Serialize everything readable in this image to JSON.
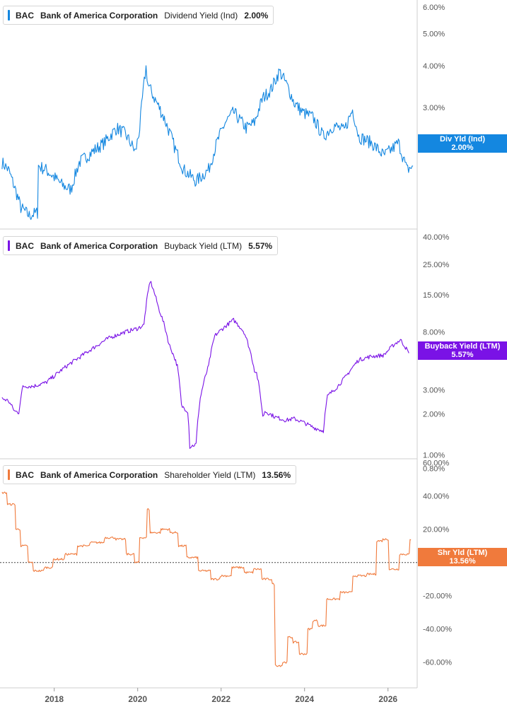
{
  "chart_data": [
    {
      "type": "line",
      "ticker": "BAC",
      "company": "Bank of America Corporation",
      "metric": "Dividend Yield (Ind)",
      "current_value": "2.00%",
      "tag_label": "Div Yld (Ind)",
      "tag_value": "2.00%",
      "color": "#1487e0",
      "scale": "log",
      "ylim_percent": [
        1.3,
        6.3
      ],
      "y_ticks": [
        "6.00%",
        "5.00%",
        "4.00%",
        "3.00%"
      ],
      "y_tick_values": [
        6.0,
        5.0,
        4.0,
        3.0
      ],
      "x": [
        2016.75,
        2016.9,
        2017.0,
        2017.2,
        2017.4,
        2017.6,
        2017.62,
        2017.8,
        2018.0,
        2018.2,
        2018.4,
        2018.6,
        2018.9,
        2019.2,
        2019.5,
        2019.7,
        2019.95,
        2020.05,
        2020.2,
        2020.25,
        2020.4,
        2020.6,
        2020.9,
        2021.1,
        2021.4,
        2021.7,
        2021.9,
        2022.1,
        2022.3,
        2022.6,
        2022.8,
        2023.0,
        2023.2,
        2023.4,
        2023.6,
        2023.75,
        2023.95,
        2024.2,
        2024.45,
        2024.7,
        2024.95,
        2025.15,
        2025.3,
        2025.6,
        2025.9,
        2026.1,
        2026.25,
        2026.45,
        2026.6
      ],
      "y": [
        2.05,
        1.95,
        1.8,
        1.5,
        1.42,
        1.45,
        2.0,
        1.95,
        1.85,
        1.75,
        1.7,
        2.05,
        2.2,
        2.35,
        2.6,
        2.5,
        2.2,
        2.6,
        3.95,
        3.5,
        3.2,
        2.85,
        2.25,
        1.95,
        1.8,
        1.95,
        2.35,
        2.7,
        2.9,
        2.6,
        2.7,
        3.2,
        3.4,
        3.85,
        3.45,
        3.1,
        2.9,
        2.8,
        2.45,
        2.65,
        2.55,
        2.95,
        2.45,
        2.35,
        2.15,
        2.25,
        2.35,
        1.95,
        2.0
      ]
    },
    {
      "type": "line",
      "ticker": "BAC",
      "company": "Bank of America Corporation",
      "metric": "Buyback Yield (LTM)",
      "current_value": "5.57%",
      "tag_label": "Buyback Yield (LTM)",
      "tag_value": "5.57%",
      "color": "#7a12e6",
      "scale": "log",
      "ylim_percent": [
        0.95,
        45
      ],
      "y_ticks": [
        "40.00%",
        "25.00%",
        "15.00%",
        "8.00%",
        "3.00%",
        "2.00%",
        "1.00%",
        "0.80%"
      ],
      "y_tick_values": [
        40,
        25,
        15,
        8,
        3,
        2,
        1,
        0.8
      ],
      "x": [
        2016.75,
        2016.9,
        2017.05,
        2017.15,
        2017.25,
        2017.5,
        2017.8,
        2018.0,
        2018.3,
        2018.6,
        2018.9,
        2019.3,
        2019.7,
        2020.0,
        2020.15,
        2020.3,
        2020.5,
        2020.75,
        2020.95,
        2021.05,
        2021.2,
        2021.25,
        2021.4,
        2021.5,
        2021.7,
        2021.85,
        2022.1,
        2022.3,
        2022.55,
        2022.8,
        2022.85,
        2023.0,
        2023.05,
        2023.3,
        2023.55,
        2023.75,
        2023.95,
        2024.2,
        2024.45,
        2024.55,
        2024.8,
        2025.0,
        2025.3,
        2025.6,
        2025.9,
        2026.15,
        2026.3,
        2026.5
      ],
      "y": [
        2.6,
        2.5,
        2.1,
        2.05,
        3.2,
        3.2,
        3.4,
        3.8,
        4.5,
        5.2,
        6.0,
        7.2,
        8.0,
        8.5,
        9.0,
        19.0,
        12.0,
        6.5,
        4.5,
        2.3,
        2.1,
        1.15,
        1.2,
        2.6,
        4.5,
        7.5,
        8.8,
        9.8,
        8.0,
        4.2,
        4.0,
        1.9,
        2.1,
        1.9,
        1.8,
        1.85,
        1.75,
        1.6,
        1.5,
        2.7,
        3.2,
        3.8,
        5.0,
        5.3,
        5.4,
        6.5,
        7.0,
        5.6
      ]
    },
    {
      "type": "line",
      "ticker": "BAC",
      "company": "Bank of America Corporation",
      "metric": "Shareholder Yield (LTM)",
      "current_value": "13.56%",
      "tag_label": "Shr Yld (LTM)",
      "tag_value": "13.56%",
      "color": "#f07a3c",
      "scale": "linear",
      "ylim_percent": [
        -75,
        62
      ],
      "reference_line": 0,
      "y_ticks": [
        "60.00%",
        "40.00%",
        "20.00%",
        "0.00%",
        "-20.00%",
        "-40.00%",
        "-60.00%"
      ],
      "y_tick_values": [
        60,
        40,
        20,
        0,
        -20,
        -40,
        -60
      ],
      "x": [
        2016.75,
        2016.9,
        2017.1,
        2017.2,
        2017.4,
        2017.5,
        2017.8,
        2018.0,
        2018.3,
        2018.6,
        2018.9,
        2019.25,
        2019.5,
        2019.75,
        2019.95,
        2020.05,
        2020.25,
        2020.3,
        2020.6,
        2020.8,
        2021.0,
        2021.2,
        2021.5,
        2021.8,
        2022.0,
        2022.3,
        2022.6,
        2022.8,
        2023.0,
        2023.25,
        2023.3,
        2023.5,
        2023.6,
        2023.75,
        2023.9,
        2024.1,
        2024.2,
        2024.35,
        2024.55,
        2024.9,
        2025.2,
        2025.55,
        2025.75,
        2025.9,
        2026.05,
        2026.3,
        2026.55
      ],
      "y": [
        42,
        35,
        20,
        10,
        0,
        -5,
        -3,
        2,
        5,
        10,
        12,
        15,
        14,
        5,
        0,
        15,
        32,
        18,
        20,
        18,
        10,
        3,
        -5,
        -10,
        -8,
        -3,
        -6,
        -4,
        -10,
        -13,
        -62,
        -60,
        -45,
        -48,
        -55,
        -40,
        -35,
        -38,
        -22,
        -18,
        -8,
        -7,
        13,
        14,
        -4,
        5,
        13.56
      ]
    }
  ],
  "x_axis": {
    "ticks": [
      "2018",
      "2020",
      "2022",
      "2024",
      "2026"
    ],
    "tick_values": [
      2018,
      2020,
      2022,
      2024,
      2026
    ],
    "range": [
      2016.7,
      2026.7
    ]
  }
}
